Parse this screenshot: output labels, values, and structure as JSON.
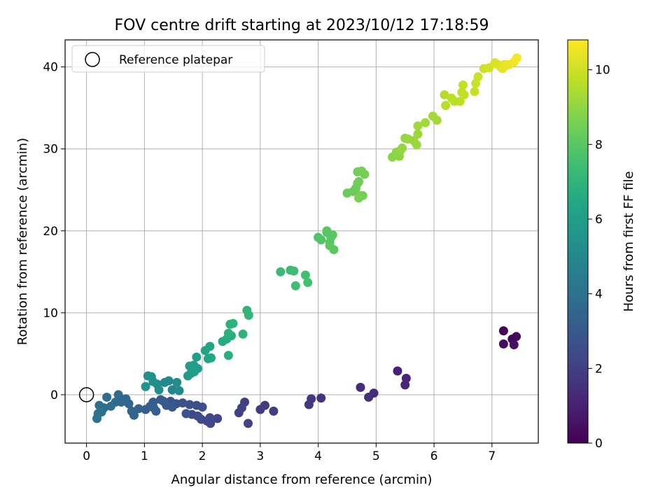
{
  "chart_data": {
    "type": "scatter",
    "title": "FOV centre drift starting at 2023/10/12 17:18:59",
    "xlabel": "Angular distance from reference (arcmin)",
    "ylabel": "Rotation from reference (arcmin)",
    "colorbar_label": "Hours from first FF file",
    "xlim": [
      -0.37,
      7.8
    ],
    "ylim": [
      -5.9,
      43.3
    ],
    "clim": [
      0,
      10.8
    ],
    "xticks": [
      0,
      1,
      2,
      3,
      4,
      5,
      6,
      7
    ],
    "yticks": [
      0,
      10,
      20,
      30,
      40
    ],
    "cticks": [
      0,
      2,
      4,
      6,
      8,
      10
    ],
    "grid": true,
    "legend": {
      "position": "top-left",
      "label": "Reference platepar",
      "marker": "hollow-circle"
    },
    "reference_point": {
      "x": 0,
      "y": 0
    },
    "colormap": "viridis",
    "points": [
      {
        "x": 7.2,
        "y": 7.8,
        "c": 0.1
      },
      {
        "x": 7.35,
        "y": 6.8,
        "c": 0.2
      },
      {
        "x": 7.42,
        "y": 7.1,
        "c": 0.3
      },
      {
        "x": 7.2,
        "y": 6.2,
        "c": 0.4
      },
      {
        "x": 7.38,
        "y": 6.1,
        "c": 0.5
      },
      {
        "x": 5.37,
        "y": 2.9,
        "c": 1.0
      },
      {
        "x": 5.52,
        "y": 2.0,
        "c": 1.1
      },
      {
        "x": 5.5,
        "y": 1.2,
        "c": 1.2
      },
      {
        "x": 4.73,
        "y": 0.9,
        "c": 1.3
      },
      {
        "x": 4.96,
        "y": 0.2,
        "c": 1.4
      },
      {
        "x": 4.87,
        "y": -0.3,
        "c": 1.5
      },
      {
        "x": 4.05,
        "y": -0.4,
        "c": 1.6
      },
      {
        "x": 3.88,
        "y": -0.5,
        "c": 1.7
      },
      {
        "x": 3.84,
        "y": -1.2,
        "c": 1.75
      },
      {
        "x": 3.08,
        "y": -1.3,
        "c": 1.8
      },
      {
        "x": 3.0,
        "y": -1.8,
        "c": 1.85
      },
      {
        "x": 3.23,
        "y": -2.0,
        "c": 1.9
      },
      {
        "x": 2.73,
        "y": -0.9,
        "c": 2.0
      },
      {
        "x": 2.68,
        "y": -1.6,
        "c": 2.05
      },
      {
        "x": 2.63,
        "y": -2.2,
        "c": 2.1
      },
      {
        "x": 2.79,
        "y": -3.5,
        "c": 2.15
      },
      {
        "x": 2.26,
        "y": -2.9,
        "c": 2.2
      },
      {
        "x": 2.13,
        "y": -2.8,
        "c": 2.25
      },
      {
        "x": 2.14,
        "y": -3.5,
        "c": 2.3
      },
      {
        "x": 2.08,
        "y": -3.2,
        "c": 2.35
      },
      {
        "x": 1.98,
        "y": -3.0,
        "c": 2.4
      },
      {
        "x": 1.92,
        "y": -2.6,
        "c": 2.45
      },
      {
        "x": 1.82,
        "y": -2.4,
        "c": 2.5
      },
      {
        "x": 2.0,
        "y": -1.5,
        "c": 2.55
      },
      {
        "x": 1.9,
        "y": -1.3,
        "c": 2.6
      },
      {
        "x": 1.78,
        "y": -1.2,
        "c": 2.65
      },
      {
        "x": 1.66,
        "y": -1.0,
        "c": 2.7
      },
      {
        "x": 1.72,
        "y": -2.3,
        "c": 2.75
      },
      {
        "x": 1.55,
        "y": -1.1,
        "c": 2.8
      },
      {
        "x": 1.45,
        "y": -0.8,
        "c": 2.85
      },
      {
        "x": 1.48,
        "y": -1.5,
        "c": 2.9
      },
      {
        "x": 1.38,
        "y": -1.3,
        "c": 2.95
      },
      {
        "x": 1.33,
        "y": -0.8,
        "c": 3.0
      },
      {
        "x": 1.28,
        "y": -0.6,
        "c": 3.05
      },
      {
        "x": 1.15,
        "y": -0.9,
        "c": 3.1
      },
      {
        "x": 1.16,
        "y": -1.6,
        "c": 3.15
      },
      {
        "x": 1.02,
        "y": -1.8,
        "c": 3.2
      },
      {
        "x": 1.1,
        "y": -1.4,
        "c": 3.25
      },
      {
        "x": 1.2,
        "y": -2.0,
        "c": 3.3
      },
      {
        "x": 0.9,
        "y": -1.7,
        "c": 3.4
      },
      {
        "x": 0.82,
        "y": -2.5,
        "c": 3.45
      },
      {
        "x": 0.78,
        "y": -2.0,
        "c": 3.5
      },
      {
        "x": 0.73,
        "y": -1.1,
        "c": 3.55
      },
      {
        "x": 0.68,
        "y": -0.5,
        "c": 3.6
      },
      {
        "x": 0.6,
        "y": -0.9,
        "c": 3.65
      },
      {
        "x": 0.55,
        "y": 0.0,
        "c": 3.7
      },
      {
        "x": 0.5,
        "y": -0.9,
        "c": 3.75
      },
      {
        "x": 0.42,
        "y": -1.4,
        "c": 3.8
      },
      {
        "x": 0.35,
        "y": -0.3,
        "c": 3.85
      },
      {
        "x": 0.3,
        "y": -1.6,
        "c": 3.9
      },
      {
        "x": 0.22,
        "y": -1.3,
        "c": 3.95
      },
      {
        "x": 0.2,
        "y": -2.3,
        "c": 4.0
      },
      {
        "x": 0.18,
        "y": -2.9,
        "c": 4.05
      },
      {
        "x": 0.26,
        "y": -2.1,
        "c": 4.1
      },
      {
        "x": 1.48,
        "y": 0.6,
        "c": 4.9
      },
      {
        "x": 1.42,
        "y": 1.7,
        "c": 5.0
      },
      {
        "x": 1.35,
        "y": 1.5,
        "c": 5.05
      },
      {
        "x": 1.56,
        "y": 1.5,
        "c": 5.1
      },
      {
        "x": 1.6,
        "y": 0.5,
        "c": 5.15
      },
      {
        "x": 1.25,
        "y": 0.6,
        "c": 5.2
      },
      {
        "x": 1.22,
        "y": 1.3,
        "c": 5.25
      },
      {
        "x": 1.15,
        "y": 1.6,
        "c": 5.3
      },
      {
        "x": 1.12,
        "y": 2.2,
        "c": 5.35
      },
      {
        "x": 1.06,
        "y": 2.3,
        "c": 5.4
      },
      {
        "x": 1.02,
        "y": 1.0,
        "c": 5.45
      },
      {
        "x": 1.75,
        "y": 2.3,
        "c": 5.8
      },
      {
        "x": 1.8,
        "y": 2.6,
        "c": 5.85
      },
      {
        "x": 1.86,
        "y": 2.8,
        "c": 5.9
      },
      {
        "x": 1.78,
        "y": 3.5,
        "c": 5.95
      },
      {
        "x": 1.85,
        "y": 3.6,
        "c": 6.0
      },
      {
        "x": 1.9,
        "y": 4.6,
        "c": 6.05
      },
      {
        "x": 1.92,
        "y": 3.2,
        "c": 6.1
      },
      {
        "x": 2.05,
        "y": 5.4,
        "c": 6.3
      },
      {
        "x": 2.13,
        "y": 5.9,
        "c": 6.35
      },
      {
        "x": 2.1,
        "y": 4.4,
        "c": 6.4
      },
      {
        "x": 2.15,
        "y": 4.5,
        "c": 6.45
      },
      {
        "x": 2.35,
        "y": 6.5,
        "c": 6.6
      },
      {
        "x": 2.42,
        "y": 6.8,
        "c": 6.65
      },
      {
        "x": 2.5,
        "y": 7.2,
        "c": 6.7
      },
      {
        "x": 2.45,
        "y": 4.8,
        "c": 6.75
      },
      {
        "x": 2.45,
        "y": 7.5,
        "c": 6.8
      },
      {
        "x": 2.48,
        "y": 8.6,
        "c": 6.85
      },
      {
        "x": 2.53,
        "y": 8.7,
        "c": 6.9
      },
      {
        "x": 2.7,
        "y": 7.4,
        "c": 6.95
      },
      {
        "x": 2.77,
        "y": 10.3,
        "c": 7.0
      },
      {
        "x": 2.8,
        "y": 9.7,
        "c": 7.05
      },
      {
        "x": 3.35,
        "y": 15.0,
        "c": 7.3
      },
      {
        "x": 3.52,
        "y": 15.2,
        "c": 7.35
      },
      {
        "x": 3.58,
        "y": 15.1,
        "c": 7.4
      },
      {
        "x": 3.61,
        "y": 13.3,
        "c": 7.45
      },
      {
        "x": 3.78,
        "y": 14.6,
        "c": 7.5
      },
      {
        "x": 3.82,
        "y": 13.7,
        "c": 7.55
      },
      {
        "x": 4.0,
        "y": 19.2,
        "c": 7.8
      },
      {
        "x": 4.05,
        "y": 18.9,
        "c": 7.83
      },
      {
        "x": 4.15,
        "y": 19.8,
        "c": 7.86
      },
      {
        "x": 4.15,
        "y": 20.0,
        "c": 7.9
      },
      {
        "x": 4.2,
        "y": 18.6,
        "c": 7.93
      },
      {
        "x": 4.22,
        "y": 19.2,
        "c": 7.96
      },
      {
        "x": 4.25,
        "y": 19.5,
        "c": 8.0
      },
      {
        "x": 4.27,
        "y": 17.7,
        "c": 8.03
      },
      {
        "x": 4.2,
        "y": 18.2,
        "c": 8.06
      },
      {
        "x": 4.5,
        "y": 24.6,
        "c": 8.3
      },
      {
        "x": 4.6,
        "y": 24.8,
        "c": 8.33
      },
      {
        "x": 4.65,
        "y": 25.2,
        "c": 8.36
      },
      {
        "x": 4.68,
        "y": 25.8,
        "c": 8.4
      },
      {
        "x": 4.7,
        "y": 26.0,
        "c": 8.43
      },
      {
        "x": 4.68,
        "y": 27.2,
        "c": 8.46
      },
      {
        "x": 4.75,
        "y": 27.3,
        "c": 8.5
      },
      {
        "x": 4.8,
        "y": 26.9,
        "c": 8.53
      },
      {
        "x": 4.72,
        "y": 24.3,
        "c": 8.56
      },
      {
        "x": 4.77,
        "y": 24.3,
        "c": 8.6
      },
      {
        "x": 4.7,
        "y": 24.0,
        "c": 8.63
      },
      {
        "x": 5.28,
        "y": 29.0,
        "c": 8.9
      },
      {
        "x": 5.35,
        "y": 29.6,
        "c": 8.93
      },
      {
        "x": 5.4,
        "y": 29.1,
        "c": 8.96
      },
      {
        "x": 5.42,
        "y": 29.8,
        "c": 9.0
      },
      {
        "x": 5.45,
        "y": 30.1,
        "c": 9.03
      },
      {
        "x": 5.5,
        "y": 31.3,
        "c": 9.06
      },
      {
        "x": 5.55,
        "y": 31.2,
        "c": 9.1
      },
      {
        "x": 5.65,
        "y": 31.0,
        "c": 9.13
      },
      {
        "x": 5.7,
        "y": 30.5,
        "c": 9.16
      },
      {
        "x": 5.72,
        "y": 31.8,
        "c": 9.2
      },
      {
        "x": 5.72,
        "y": 32.8,
        "c": 9.23
      },
      {
        "x": 5.85,
        "y": 33.2,
        "c": 9.26
      },
      {
        "x": 5.98,
        "y": 34.0,
        "c": 9.3
      },
      {
        "x": 6.05,
        "y": 33.5,
        "c": 9.33
      },
      {
        "x": 6.18,
        "y": 36.6,
        "c": 9.6
      },
      {
        "x": 6.2,
        "y": 35.3,
        "c": 9.63
      },
      {
        "x": 6.3,
        "y": 36.2,
        "c": 9.66
      },
      {
        "x": 6.35,
        "y": 35.8,
        "c": 9.7
      },
      {
        "x": 6.45,
        "y": 35.8,
        "c": 9.73
      },
      {
        "x": 6.48,
        "y": 36.9,
        "c": 9.76
      },
      {
        "x": 6.5,
        "y": 37.8,
        "c": 9.8
      },
      {
        "x": 6.52,
        "y": 36.6,
        "c": 9.83
      },
      {
        "x": 6.7,
        "y": 37.0,
        "c": 9.86
      },
      {
        "x": 6.72,
        "y": 38.0,
        "c": 9.9
      },
      {
        "x": 6.76,
        "y": 38.8,
        "c": 9.93
      },
      {
        "x": 6.86,
        "y": 39.8,
        "c": 9.96
      },
      {
        "x": 6.95,
        "y": 39.9,
        "c": 10.1
      },
      {
        "x": 7.05,
        "y": 40.5,
        "c": 10.2
      },
      {
        "x": 7.1,
        "y": 40.3,
        "c": 10.25
      },
      {
        "x": 7.15,
        "y": 40.0,
        "c": 10.3
      },
      {
        "x": 7.18,
        "y": 39.8,
        "c": 10.35
      },
      {
        "x": 7.22,
        "y": 40.3,
        "c": 10.4
      },
      {
        "x": 7.25,
        "y": 40.2,
        "c": 10.45
      },
      {
        "x": 7.3,
        "y": 40.3,
        "c": 10.5
      },
      {
        "x": 7.38,
        "y": 40.6,
        "c": 10.6
      },
      {
        "x": 7.43,
        "y": 41.1,
        "c": 10.7
      }
    ]
  }
}
